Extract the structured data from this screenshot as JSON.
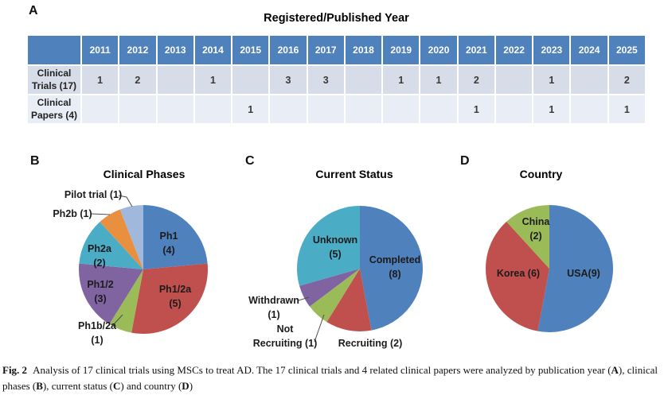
{
  "figure": {
    "panels": {
      "a": {
        "letter": "A"
      },
      "b": {
        "letter": "B"
      },
      "c": {
        "letter": "C"
      },
      "d": {
        "letter": "D"
      }
    },
    "caption": {
      "segments": [
        {
          "text": "Fig. 2",
          "bold": true,
          "fig_label": true
        },
        {
          "text": "Analysis of 17 clinical trials using MSCs to treat AD. The 17 clinical trials and 4 related clinical papers were analyzed by publication year (",
          "bold": false
        },
        {
          "text": "A",
          "bold": true
        },
        {
          "text": "), clinical phases (",
          "bold": false
        },
        {
          "text": "B",
          "bold": true
        },
        {
          "text": "), current status (",
          "bold": false
        },
        {
          "text": "C",
          "bold": true
        },
        {
          "text": ") and country (",
          "bold": false
        },
        {
          "text": "D",
          "bold": true
        },
        {
          "text": ")",
          "bold": false
        }
      ]
    },
    "theme": {
      "table_header_bg": "#4F81BD",
      "table_header_text": "#FFFFFF",
      "table_row1_bg": "#D7DCE9",
      "table_row2_bg": "#E9EDF5"
    }
  },
  "chart_data": [
    {
      "type": "table",
      "title": "Registered/Published Year",
      "columns": [
        "2011",
        "2012",
        "2013",
        "2014",
        "2015",
        "2016",
        "2017",
        "2018",
        "2019",
        "2020",
        "2021",
        "2022",
        "2023",
        "2024",
        "2025"
      ],
      "rows": [
        {
          "label": "Clinical Trials (17)",
          "values": [
            "1",
            "2",
            "",
            "1",
            "",
            "3",
            "3",
            "",
            "1",
            "1",
            "2",
            "",
            "1",
            "",
            "2"
          ]
        },
        {
          "label": "Clinical Papers (4)",
          "values": [
            "",
            "",
            "",
            "",
            "1",
            "",
            "",
            "",
            "",
            "",
            "1",
            "",
            "1",
            "",
            "1"
          ]
        }
      ]
    },
    {
      "type": "pie",
      "title": "Clinical Phases",
      "total": 17,
      "start_angle": "top",
      "direction": "clockwise",
      "slices": [
        {
          "name": "Ph1",
          "value": 4,
          "color": "#4F81BD",
          "label_lines": [
            "Ph1",
            "(4)"
          ],
          "label_placement": "inside"
        },
        {
          "name": "Ph1/2a",
          "value": 5,
          "color": "#C0504D",
          "label_lines": [
            "Ph1/2a",
            "(5)"
          ],
          "label_placement": "inside"
        },
        {
          "name": "Ph1b/2a",
          "value": 1,
          "color": "#9BBB59",
          "label_lines": [
            "Ph1b/2a",
            "(1)"
          ],
          "label_placement": "outside"
        },
        {
          "name": "Ph1/2",
          "value": 3,
          "color": "#8064A2",
          "label_lines": [
            "Ph1/2",
            "(3)"
          ],
          "label_placement": "inside"
        },
        {
          "name": "Ph2a",
          "value": 2,
          "color": "#4BACC6",
          "label_lines": [
            "Ph2a",
            "(2)"
          ],
          "label_placement": "inside"
        },
        {
          "name": "Ph2b",
          "value": 1,
          "color": "#E8903F",
          "label_lines": [
            "Ph2b (1)"
          ],
          "label_placement": "outside"
        },
        {
          "name": "Pilot trial",
          "value": 1,
          "color": "#A0B8DC",
          "label_lines": [
            "Pilot trial (1)"
          ],
          "label_placement": "outside"
        }
      ]
    },
    {
      "type": "pie",
      "title": "Current Status",
      "total": 17,
      "start_angle": "top",
      "direction": "clockwise",
      "slices": [
        {
          "name": "Completed",
          "value": 8,
          "color": "#4F81BD",
          "label_lines": [
            "Completed",
            "(8)"
          ],
          "label_placement": "inside"
        },
        {
          "name": "Recruiting",
          "value": 2,
          "color": "#C0504D",
          "label_lines": [
            "Recruiting (2)"
          ],
          "label_placement": "outside"
        },
        {
          "name": "Not Recruiting",
          "value": 1,
          "color": "#9BBB59",
          "label_lines": [
            "Not",
            "Recruiting (1)"
          ],
          "label_placement": "outside"
        },
        {
          "name": "Withdrawn",
          "value": 1,
          "color": "#8064A2",
          "label_lines": [
            "Withdrawn",
            "(1)"
          ],
          "label_placement": "outside"
        },
        {
          "name": "Unknown",
          "value": 5,
          "color": "#4BACC6",
          "label_lines": [
            "Unknown",
            "(5)"
          ],
          "label_placement": "inside"
        }
      ]
    },
    {
      "type": "pie",
      "title": "Country",
      "total": 17,
      "start_angle": "top",
      "direction": "clockwise",
      "slices": [
        {
          "name": "USA",
          "value": 9,
          "color": "#4F81BD",
          "label_lines": [
            "USA(9)"
          ],
          "label_placement": "inside"
        },
        {
          "name": "Korea",
          "value": 6,
          "color": "#C0504D",
          "label_lines": [
            "Korea (6)"
          ],
          "label_placement": "inside"
        },
        {
          "name": "China",
          "value": 2,
          "color": "#9BBB59",
          "label_lines": [
            "China",
            "(2)"
          ],
          "label_placement": "inside"
        }
      ]
    }
  ]
}
